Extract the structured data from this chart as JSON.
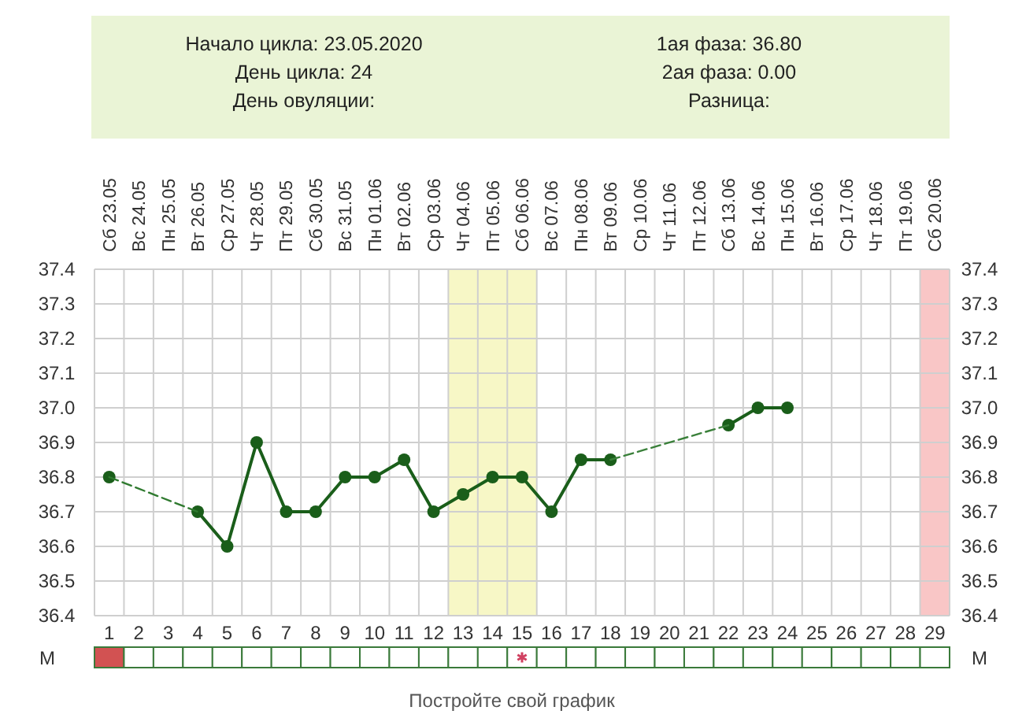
{
  "chart_data": {
    "type": "line",
    "annotations": [
      "Начало цикла: 23.05.2020",
      "День цикла: 24",
      "День овуляции:",
      "1ая фаза: 36.80",
      "2ая фаза: 0.00",
      "Разница:",
      "М",
      "М",
      "Постройте свой график"
    ],
    "x": [
      1,
      2,
      3,
      4,
      5,
      6,
      7,
      8,
      9,
      10,
      11,
      12,
      13,
      14,
      15,
      16,
      17,
      18,
      19,
      20,
      21,
      22,
      23,
      24
    ],
    "series": [
      {
        "color": "#1a5e1a",
        "marker": "circle",
        "line_style": "solid",
        "values": [
          36.8,
          null,
          null,
          36.7,
          36.6,
          36.9,
          36.7,
          36.7,
          36.8,
          36.8,
          36.85,
          36.7,
          36.75,
          36.8,
          36.8,
          36.7,
          36.85,
          36.85,
          null,
          null,
          null,
          36.95,
          37.0,
          37.0
        ]
      },
      {
        "color": "#2f7a2f",
        "marker": "none",
        "line_style": "dashed",
        "x": [
          1,
          4
        ],
        "values": [
          36.8,
          36.7
        ]
      },
      {
        "color": "#3a803a",
        "marker": "none",
        "line_style": "dashed",
        "x": [
          18,
          22
        ],
        "values": [
          36.85,
          36.95
        ]
      }
    ],
    "xlim": [
      0.5,
      29.5
    ],
    "xticks": [
      1,
      2,
      3,
      4,
      5,
      6,
      7,
      8,
      9,
      10,
      11,
      12,
      13,
      14,
      15,
      16,
      17,
      18,
      19,
      20,
      21,
      22,
      23,
      24,
      25,
      26,
      27,
      28,
      29
    ],
    "x2lim": [
      "2020-05-22T12:00",
      "2020-06-20T12:00"
    ],
    "x2ticks": [
      {
        "value": "2020-05-23",
        "label": "Сб 23.05"
      },
      {
        "value": "2020-05-24",
        "label": "Вс 24.05"
      },
      {
        "value": "2020-05-25",
        "label": "Пн 25.05"
      },
      {
        "value": "2020-05-26",
        "label": "Вт 26.05"
      },
      {
        "value": "2020-05-27",
        "label": "Ср 27.05"
      },
      {
        "value": "2020-05-28",
        "label": "Чт 28.05"
      },
      {
        "value": "2020-05-29",
        "label": "Пт 29.05"
      },
      {
        "value": "2020-05-30",
        "label": "Сб 30.05"
      },
      {
        "value": "2020-05-31",
        "label": "Вс 31.05"
      },
      {
        "value": "2020-06-01",
        "label": "Пн 01.06"
      },
      {
        "value": "2020-06-02",
        "label": "Вт 02.06"
      },
      {
        "value": "2020-06-03",
        "label": "Ср 03.06"
      },
      {
        "value": "2020-06-04",
        "label": "Чт 04.06"
      },
      {
        "value": "2020-06-05",
        "label": "Пт 05.06"
      },
      {
        "value": "2020-06-06",
        "label": "Сб 06.06"
      },
      {
        "value": "2020-06-07",
        "label": "Вс 07.06"
      },
      {
        "value": "2020-06-08",
        "label": "Пн 08.06"
      },
      {
        "value": "2020-06-09",
        "label": "Вт 09.06"
      },
      {
        "value": "2020-06-10",
        "label": "Ср 10.06"
      },
      {
        "value": "2020-06-11",
        "label": "Чт 11.06"
      },
      {
        "value": "2020-06-12",
        "label": "Пт 12.06"
      },
      {
        "value": "2020-06-13",
        "label": "Сб 13.06"
      },
      {
        "value": "2020-06-14",
        "label": "Вс 14.06"
      },
      {
        "value": "2020-06-15",
        "label": "Пн 15.06"
      },
      {
        "value": "2020-06-16",
        "label": "Вт 16.06"
      },
      {
        "value": "2020-06-17",
        "label": "Ср 17.06"
      },
      {
        "value": "2020-06-18",
        "label": "Чт 18.06"
      },
      {
        "value": "2020-06-19",
        "label": "Пт 19.06"
      },
      {
        "value": "2020-06-20",
        "label": "Сб 20.06"
      }
    ],
    "ylim": [
      36.4,
      37.4
    ],
    "yticks": [
      36.4,
      36.5,
      36.6,
      36.7,
      36.8,
      36.9,
      {
        "value": 37,
        "label": "37.0"
      },
      37.1,
      37.2,
      37.3,
      37.4
    ],
    "y2lim": [
      36.4,
      37.4
    ],
    "y2ticks": [
      36.4,
      36.5,
      36.6,
      36.7,
      36.8,
      36.9,
      {
        "value": 37,
        "label": "37.0"
      },
      37.1,
      37.2,
      37.3,
      37.4
    ],
    "bands": [
      {
        "axis": "x",
        "from": 12.5,
        "to": 15.5,
        "color": "#f7f7c6"
      },
      {
        "axis": "x",
        "from": 28.5,
        "to": 29.5,
        "color": "#f9c6c6"
      }
    ],
    "grid": true
  }
}
